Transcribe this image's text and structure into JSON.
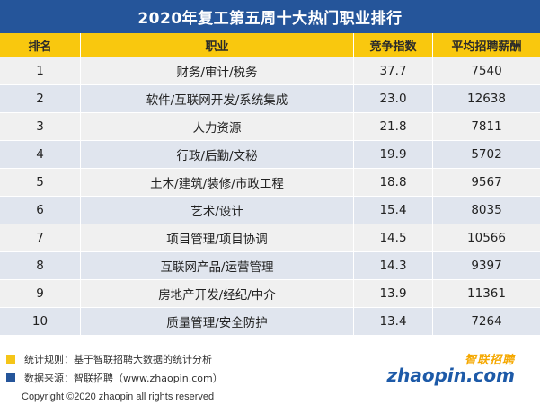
{
  "title": "2020年复工第五周十大热门职业排行",
  "chart_data": {
    "type": "table",
    "title": "2020年复工第五周十大热门职业排行",
    "columns": [
      "排名",
      "职业",
      "竞争指数",
      "平均招聘薪酬"
    ],
    "rows": [
      {
        "rank": "1",
        "job": "财务/审计/税务",
        "index": "37.7",
        "salary": "7540"
      },
      {
        "rank": "2",
        "job": "软件/互联网开发/系统集成",
        "index": "23.0",
        "salary": "12638"
      },
      {
        "rank": "3",
        "job": "人力资源",
        "index": "21.8",
        "salary": "7811"
      },
      {
        "rank": "4",
        "job": "行政/后勤/文秘",
        "index": "19.9",
        "salary": "5702"
      },
      {
        "rank": "5",
        "job": "土木/建筑/装修/市政工程",
        "index": "18.8",
        "salary": "9567"
      },
      {
        "rank": "6",
        "job": "艺术/设计",
        "index": "15.4",
        "salary": "8035"
      },
      {
        "rank": "7",
        "job": "项目管理/项目协调",
        "index": "14.5",
        "salary": "10566"
      },
      {
        "rank": "8",
        "job": "互联网产品/运营管理",
        "index": "14.3",
        "salary": "9397"
      },
      {
        "rank": "9",
        "job": "房地产开发/经纪/中介",
        "index": "13.9",
        "salary": "11361"
      },
      {
        "rank": "10",
        "job": "质量管理/安全防护",
        "index": "13.4",
        "salary": "7264"
      }
    ]
  },
  "footer": {
    "note_rule": "统计规则：基于智联招聘大数据的统计分析",
    "note_source": "数据来源：智联招聘（www.zhaopin.com）",
    "logo_cn": "智联招聘",
    "logo_en": "zhaopin.com",
    "copyright": "Copyright ©2020 zhaopin all rights reserved"
  },
  "colors": {
    "title_bg": "#25559a",
    "header_bg": "#f9c80e",
    "row_odd": "#f0f0f0",
    "row_even": "#e0e5ee",
    "note_rule_square": "#f5c518",
    "note_source_square": "#25559a"
  }
}
